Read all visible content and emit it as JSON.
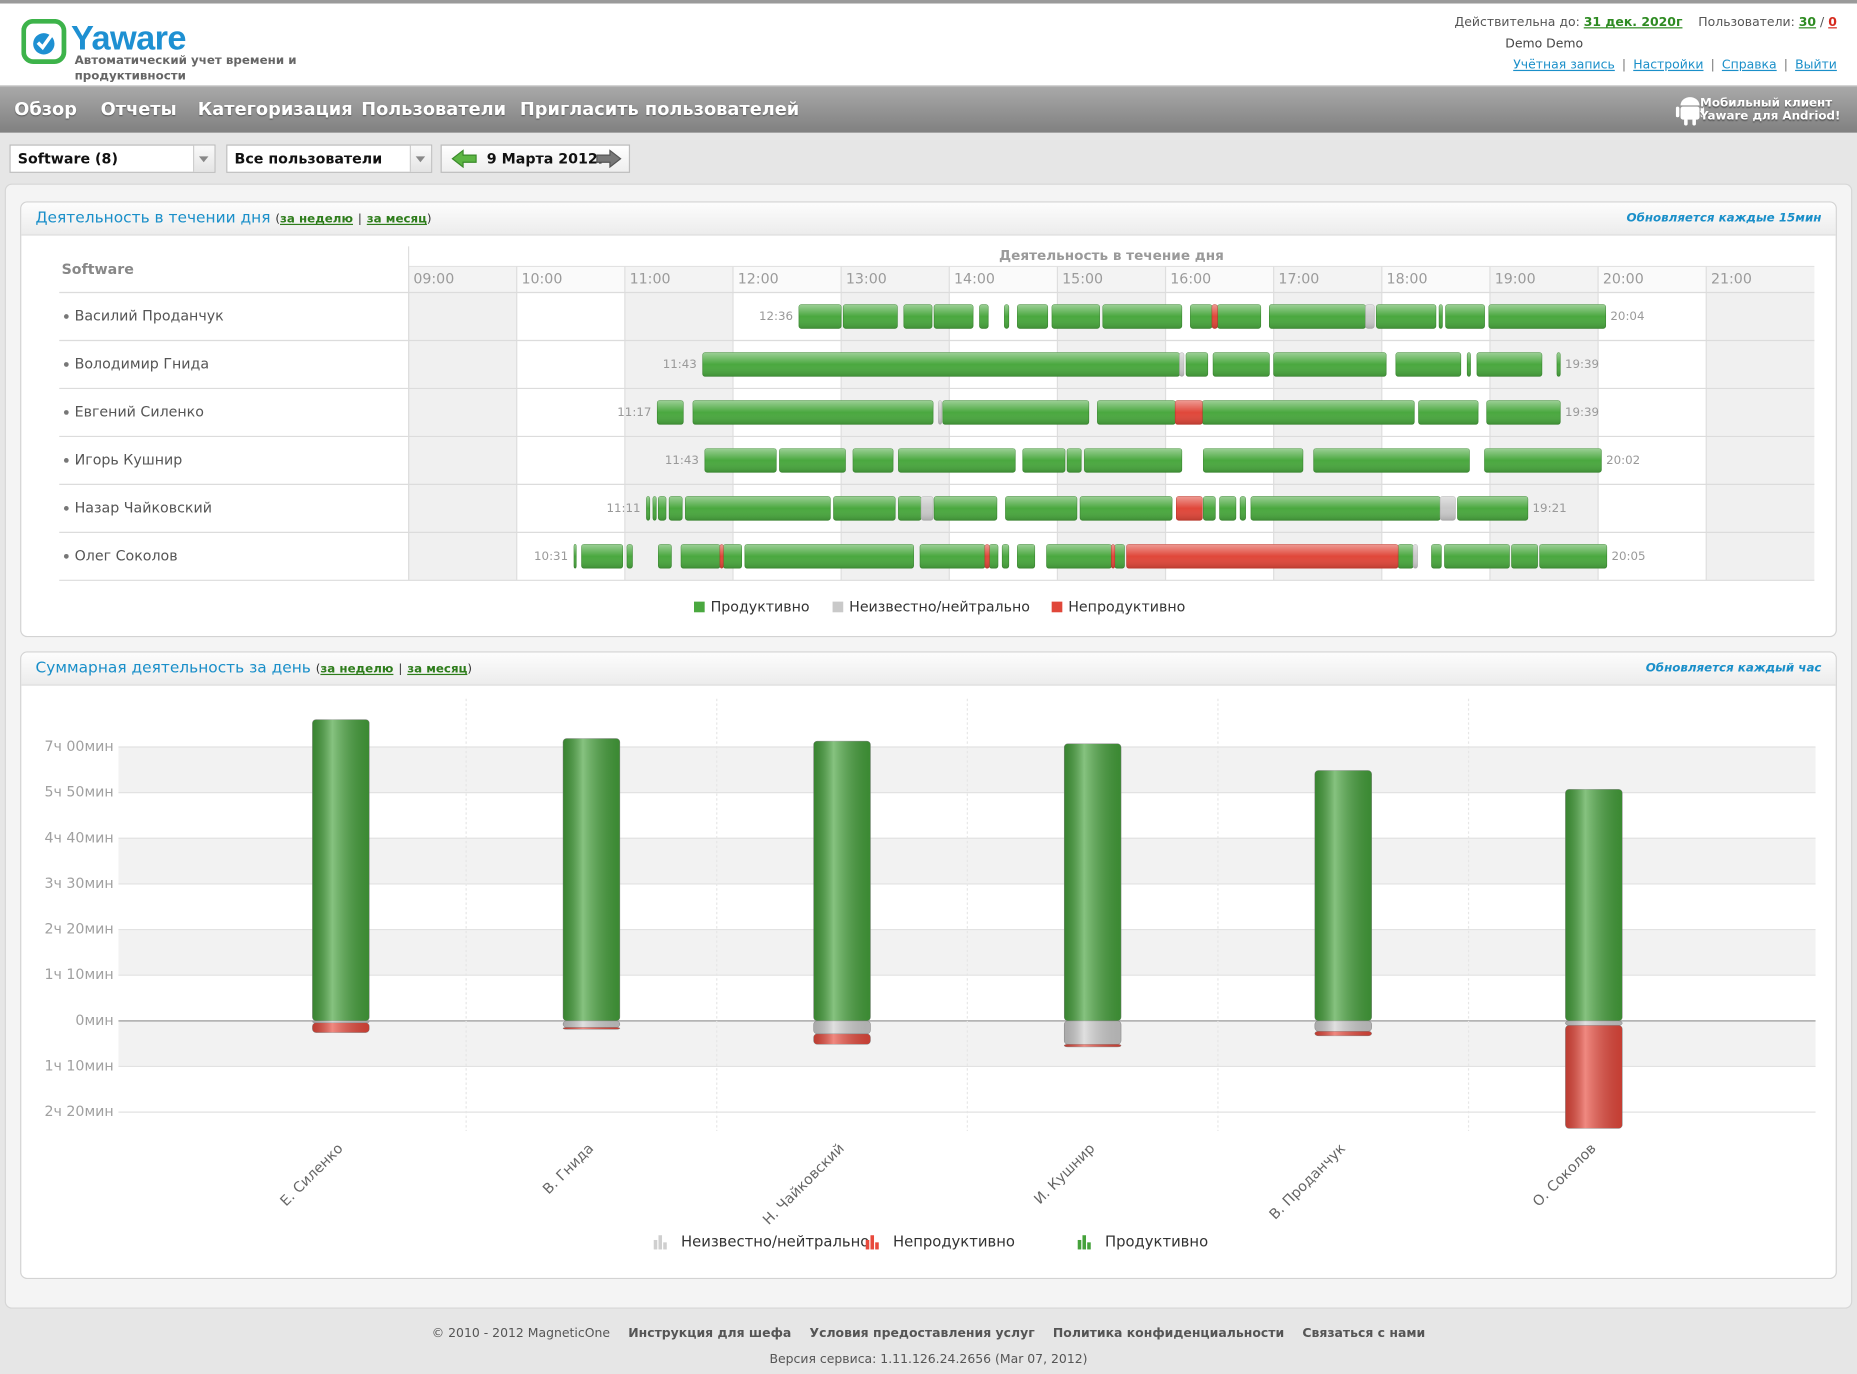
{
  "header": {
    "logo": "Yaware",
    "tagline": "Автоматический учет времени и продуктивности",
    "valid_until_label": "Действительна до:",
    "valid_until": "31 дек. 2020г",
    "users_label": "Пользователи:",
    "users_total": 30,
    "users_separator": "/",
    "users_active": 0,
    "account_name": "Demo Demo",
    "links": [
      "Учётная запись",
      "Настройки",
      "Справка",
      "Выйти"
    ],
    "link_separator": "|"
  },
  "nav": {
    "items": [
      "Обзор",
      "Отчеты",
      "Категоризация",
      "Пользователи",
      "Пригласить пользователей"
    ],
    "mobile_line_1": "Мобильный клиент",
    "mobile_line_2": "Yaware для Andriod!"
  },
  "filters": {
    "group": "Software (8)",
    "users": "Все пользователи",
    "date": "9 Марта 2012г"
  },
  "chart_data": [
    {
      "type": "timeline",
      "title": "Деятельность в течении дня",
      "bracket_open": "(",
      "bracket_close": ")",
      "period_links": [
        "за неделю",
        "за месяц"
      ],
      "period_separator": "|",
      "update_note": "Обновляется каждые 15мин",
      "group_header": "Software",
      "axis_title": "Деятельность в течение дня",
      "xlim": [
        9,
        22
      ],
      "xticks": [
        {
          "value": 9,
          "label": "09:00"
        },
        {
          "value": 10,
          "label": "10:00"
        },
        {
          "value": 11,
          "label": "11:00"
        },
        {
          "value": 12,
          "label": "12:00"
        },
        {
          "value": 13,
          "label": "13:00"
        },
        {
          "value": 14,
          "label": "14:00"
        },
        {
          "value": 15,
          "label": "15:00"
        },
        {
          "value": 16,
          "label": "16:00"
        },
        {
          "value": 17,
          "label": "17:00"
        },
        {
          "value": 18,
          "label": "18:00"
        },
        {
          "value": 19,
          "label": "19:00"
        },
        {
          "value": 20,
          "label": "20:00"
        },
        {
          "value": 21,
          "label": "21:00"
        }
      ],
      "series": [
        {
          "name": "Продуктивно",
          "color": "#4aa83f"
        },
        {
          "name": "Неизвестно/нейтрально",
          "color": "#c9c9c9"
        },
        {
          "name": "Непродуктивно",
          "color": "#e0473a"
        }
      ],
      "rows": [
        {
          "name": "Василий Проданчук",
          "start_label": "12:36",
          "end_label": "20:04",
          "segments": [
            [
              [
                12.61,
                13.0
              ],
              [
                13.02,
                13.52
              ],
              [
                13.58,
                13.84
              ],
              [
                13.86,
                14.22
              ],
              [
                14.28,
                14.36
              ],
              [
                14.51,
                14.55
              ],
              [
                14.63,
                14.91
              ],
              [
                14.95,
                15.39
              ],
              [
                15.42,
                16.15
              ],
              [
                16.23,
                16.43
              ],
              [
                16.48,
                16.88
              ],
              [
                16.96,
                17.85
              ],
              [
                17.95,
                18.5
              ],
              [
                18.53,
                18.56
              ],
              [
                18.59,
                18.95
              ],
              [
                18.99,
                20.07
              ]
            ],
            [
              [
                17.85,
                17.93
              ]
            ],
            [
              [
                16.43,
                16.48
              ]
            ]
          ]
        },
        {
          "name": "Володимир Гнида",
          "start_label": "11:43",
          "end_label": "19:39",
          "segments": [
            [
              [
                11.72,
                16.13
              ],
              [
                16.19,
                16.39
              ],
              [
                16.44,
                16.96
              ],
              [
                17.0,
                18.04
              ],
              [
                18.13,
                18.73
              ],
              [
                18.79,
                18.82
              ],
              [
                18.88,
                19.48
              ],
              [
                19.62,
                19.65
              ]
            ],
            [
              [
                16.13,
                16.17
              ]
            ],
            []
          ]
        },
        {
          "name": "Евгений Силенко",
          "start_label": "11:17",
          "end_label": "19:39",
          "segments": [
            [
              [
                11.3,
                11.54
              ],
              [
                11.63,
                13.85
              ],
              [
                13.94,
                15.29
              ],
              [
                15.37,
                16.09
              ],
              [
                16.34,
                18.3
              ],
              [
                18.34,
                18.89
              ],
              [
                18.97,
                19.65
              ]
            ],
            [
              [
                13.9,
                13.93
              ]
            ],
            [
              [
                16.09,
                16.34
              ]
            ]
          ]
        },
        {
          "name": "Игорь Кушнир",
          "start_label": "11:43",
          "end_label": "20:02",
          "segments": [
            [
              [
                11.74,
                12.4
              ],
              [
                12.43,
                13.04
              ],
              [
                13.11,
                13.48
              ],
              [
                13.53,
                14.61
              ],
              [
                14.68,
                15.07
              ],
              [
                15.09,
                15.22
              ],
              [
                15.25,
                16.15
              ],
              [
                16.35,
                17.27
              ],
              [
                17.37,
                18.81
              ],
              [
                18.95,
                20.03
              ]
            ],
            [],
            []
          ]
        },
        {
          "name": "Назар Чайковский",
          "start_label": "11:11",
          "end_label": "19:21",
          "segments": [
            [
              [
                11.2,
                11.23
              ],
              [
                11.26,
                11.29
              ],
              [
                11.31,
                11.38
              ],
              [
                11.41,
                11.53
              ],
              [
                11.56,
                12.9
              ],
              [
                12.93,
                13.5
              ],
              [
                13.53,
                13.74
              ],
              [
                13.86,
                14.44
              ],
              [
                14.52,
                15.18
              ],
              [
                15.21,
                16.06
              ],
              [
                16.35,
                16.46
              ],
              [
                16.5,
                16.65
              ],
              [
                16.69,
                16.74
              ],
              [
                16.79,
                18.54
              ],
              [
                18.7,
                19.35
              ]
            ],
            [
              [
                13.74,
                13.85
              ],
              [
                18.54,
                18.68
              ]
            ],
            [
              [
                16.1,
                16.34
              ]
            ]
          ]
        },
        {
          "name": "Олег Соколов",
          "start_label": "10:31",
          "end_label": "20:05",
          "segments": [
            [
              [
                10.53,
                10.55
              ],
              [
                10.6,
                10.98
              ],
              [
                11.02,
                11.07
              ],
              [
                11.31,
                11.43
              ],
              [
                11.52,
                11.88
              ],
              [
                11.91,
                12.08
              ],
              [
                12.11,
                13.67
              ],
              [
                13.73,
                14.33
              ],
              [
                14.37,
                14.45
              ],
              [
                14.49,
                14.55
              ],
              [
                14.63,
                14.79
              ],
              [
                14.9,
                15.5
              ],
              [
                15.53,
                15.62
              ],
              [
                18.15,
                18.29
              ],
              [
                18.46,
                18.55
              ],
              [
                18.58,
                19.18
              ],
              [
                19.2,
                19.44
              ],
              [
                19.46,
                20.08
              ]
            ],
            [
              [
                18.29,
                18.33
              ]
            ],
            [
              [
                11.88,
                11.91
              ],
              [
                14.33,
                14.37
              ],
              [
                15.5,
                15.53
              ],
              [
                15.64,
                18.15
              ]
            ]
          ]
        }
      ]
    },
    {
      "type": "bar",
      "title": "Суммарная деятельность за день",
      "bracket_open": "(",
      "bracket_close": ")",
      "period_links": [
        "за неделю",
        "за месяц"
      ],
      "period_separator": "|",
      "update_note": "Обновляется каждый час",
      "categories": [
        "Е. Силенко",
        "В. Гнида",
        "Н. Чайковский",
        "И. Кушнир",
        "В. Проданчук",
        "О. Соколов"
      ],
      "series": [
        {
          "name": "Неизвестно/нейтрально",
          "color": "#cfcfcf",
          "values": [
            -3,
            -10,
            -20,
            -36,
            -16,
            -7
          ]
        },
        {
          "name": "Непродуктивно",
          "color": "#e8493c",
          "values": [
            -15,
            -3,
            -16,
            -4,
            -7,
            -158
          ]
        },
        {
          "name": "Продуктивно",
          "color": "#45a23b",
          "values": [
            462,
            433,
            429,
            425,
            384,
            355
          ]
        }
      ],
      "ylim": [
        -169,
        494
      ],
      "yticks": [
        {
          "value": 420,
          "label": "7ч 00мин"
        },
        {
          "value": 350,
          "label": "5ч 50мин"
        },
        {
          "value": 280,
          "label": "4ч 40мин"
        },
        {
          "value": 210,
          "label": "3ч 30мин"
        },
        {
          "value": 140,
          "label": "2ч 20мин"
        },
        {
          "value": 70,
          "label": "1ч 10мин"
        },
        {
          "value": 0,
          "label": "0мин"
        },
        {
          "value": -70,
          "label": "1ч 10мин"
        },
        {
          "value": -140,
          "label": "2ч 20мин"
        }
      ],
      "grid": true
    }
  ],
  "footer": {
    "copyright": "© 2010 - 2012 MagneticOne",
    "links": [
      "Инструкция для шефа",
      "Условия предоставления услуг",
      "Политика конфиденциальности",
      "Связаться с нами"
    ],
    "version": "Версия сервиса: 1.11.126.24.2656 (Mar 07, 2012)"
  }
}
